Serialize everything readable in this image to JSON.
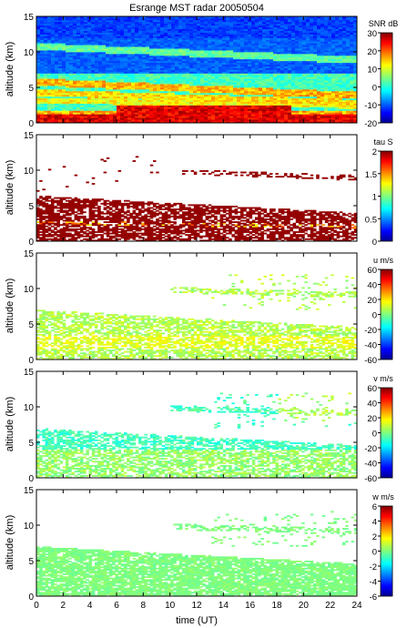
{
  "chart_data": {
    "type": "heatmap",
    "title": "Esrange MST radar 20050504",
    "xlabel": "time (UT)",
    "xlim": [
      0,
      24
    ],
    "xticks": [
      0,
      2,
      4,
      6,
      8,
      10,
      12,
      14,
      16,
      18,
      20,
      22,
      24
    ],
    "panels": [
      {
        "id": "snr",
        "ylabel": "altitude (km)",
        "ylim": [
          0,
          15
        ],
        "yticks": [
          0,
          5,
          10,
          15
        ],
        "colorbar_label": "SNR dB",
        "clim": [
          -20,
          30
        ],
        "cticks": [
          -20,
          -10,
          0,
          10,
          20,
          30
        ]
      },
      {
        "id": "tau",
        "ylabel": "altitude (km)",
        "ylim": [
          0,
          15
        ],
        "yticks": [
          0,
          5,
          10,
          15
        ],
        "colorbar_label": "tau S",
        "clim": [
          0,
          2
        ],
        "cticks": [
          0,
          0.5,
          1,
          1.5,
          2
        ]
      },
      {
        "id": "u",
        "ylabel": "altitude (km)",
        "ylim": [
          0,
          15
        ],
        "yticks": [
          0,
          5,
          10,
          15
        ],
        "colorbar_label": "u m/s",
        "clim": [
          -60,
          60
        ],
        "cticks": [
          -60,
          -40,
          -20,
          0,
          20,
          40,
          60
        ]
      },
      {
        "id": "v",
        "ylabel": "altitude (km)",
        "ylim": [
          0,
          15
        ],
        "yticks": [
          0,
          5,
          10,
          15
        ],
        "colorbar_label": "v m/s",
        "clim": [
          -60,
          60
        ],
        "cticks": [
          -60,
          -40,
          -20,
          0,
          20,
          40,
          60
        ]
      },
      {
        "id": "w",
        "ylabel": "altitude (km)",
        "ylim": [
          0,
          15
        ],
        "yticks": [
          0,
          5,
          10,
          15
        ],
        "colorbar_label": "w m/s",
        "clim": [
          -6,
          6
        ],
        "cticks": [
          -6,
          -4,
          -2,
          0,
          2,
          4,
          6
        ]
      }
    ]
  }
}
